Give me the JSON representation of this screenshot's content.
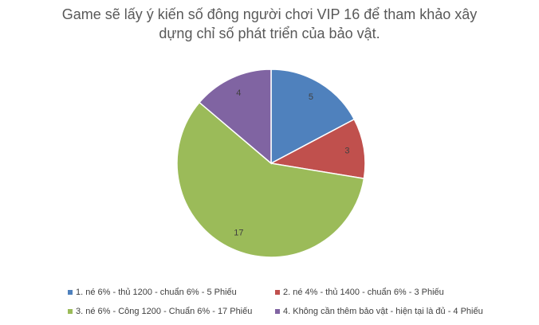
{
  "chart_data": {
    "type": "pie",
    "title": "Game sẽ lấy ý kiến số đông người chơi VIP 16 để tham khảo xây dựng chỉ số phát triển của bảo vật.",
    "categories": [
      "1. né 6% - thủ 1200 - chuẩn 6% - 5 Phiếu",
      "2. né 4% - thủ 1400 - chuẩn 6% - 3 Phiếu",
      "3. né 6% - Công 1200 - Chuẩn 6% - 17 Phiếu",
      "4. Không cần thêm bảo vật - hiện tại là đủ - 4 Phiếu"
    ],
    "values": [
      5,
      3,
      17,
      4
    ],
    "colors": [
      "#4f81bd",
      "#c0504d",
      "#9bbb59",
      "#8064a2"
    ],
    "legend": "bottom"
  }
}
